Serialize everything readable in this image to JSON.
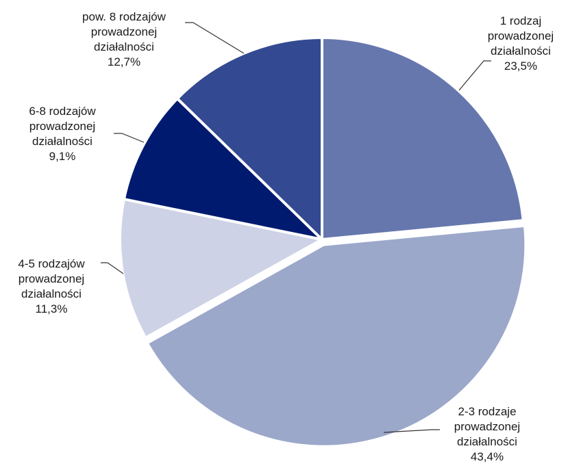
{
  "chart_data": {
    "type": "pie",
    "title": "",
    "slices": [
      {
        "label_lines": [
          "1 rodzaj",
          "prowadzonej",
          "działalności"
        ],
        "value_label": "23,5%",
        "value": 23.5,
        "color": "#6677ae"
      },
      {
        "label_lines": [
          "2-3 rodzaje",
          "prowadzonej",
          "działalności"
        ],
        "value_label": "43,4%",
        "value": 43.4,
        "color": "#9ba8ca"
      },
      {
        "label_lines": [
          "4-5 rodzajów",
          "prowadzonej",
          "działalności"
        ],
        "value_label": "11,3%",
        "value": 11.3,
        "color": "#cdd2e6"
      },
      {
        "label_lines": [
          "6-8 rodzajów",
          "prowadzonej",
          "działalności"
        ],
        "value_label": "9,1%",
        "value": 9.1,
        "color": "#001a70"
      },
      {
        "label_lines": [
          "pow. 8 rodzajów",
          "prowadzonej",
          "działalności"
        ],
        "value_label": "12,7%",
        "value": 12.7,
        "color": "#334991"
      }
    ],
    "exploded_slice_index": 1
  }
}
